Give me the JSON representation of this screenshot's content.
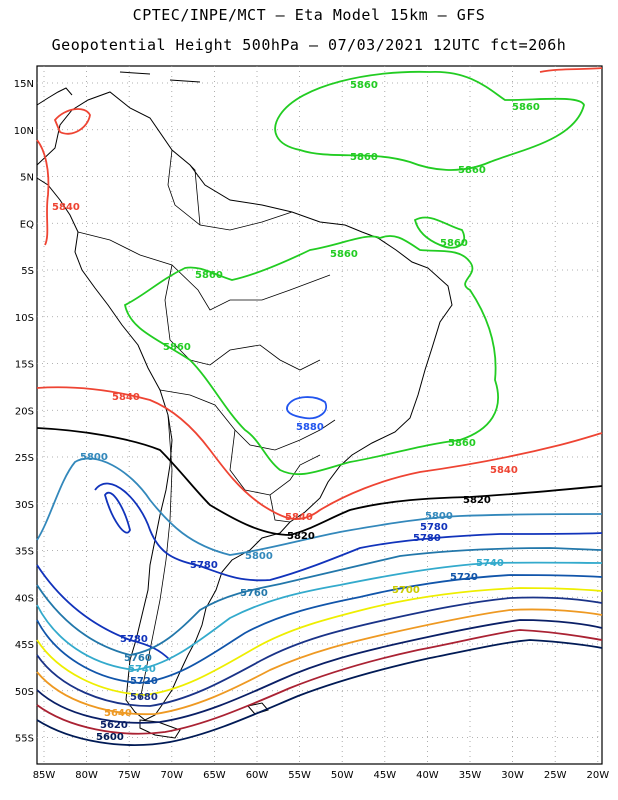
{
  "header": {
    "line1": "CPTEC/INPE/MCT –  Eta Model 15km – GFS",
    "line2": "Geopotential Height 500hPa – 07/03/2021 12UTC fct=206h"
  },
  "axes": {
    "lat_labels": [
      "15N",
      "10N",
      "5N",
      "EQ",
      "5S",
      "10S",
      "15S",
      "20S",
      "25S",
      "30S",
      "35S",
      "40S",
      "45S",
      "50S",
      "55S"
    ],
    "lon_labels": [
      "85W",
      "80W",
      "75W",
      "70W",
      "65W",
      "60W",
      "55W",
      "50W",
      "45W",
      "40W",
      "35W",
      "30W",
      "25W",
      "20W"
    ]
  },
  "colors": {
    "c5860": "#22cc22",
    "c5880": "#2255ee",
    "c5840": "#ee4433",
    "c5820": "#000000",
    "c5800": "#3388bb",
    "c5780": "#1133bb",
    "c5760": "#2277aa",
    "c5740": "#33aacc",
    "c5720": "#1155aa",
    "c5700": "#eeee00",
    "c5680": "#ee9922",
    "c5640": "#0a1f66",
    "c5600": "#001a55"
  },
  "contour_labels": [
    {
      "id": "l5860a",
      "text": "5860"
    },
    {
      "id": "l5860b",
      "text": "5860"
    },
    {
      "id": "l5860c",
      "text": "5860"
    },
    {
      "id": "l5860d",
      "text": "5860"
    },
    {
      "id": "l5860e",
      "text": "5860"
    },
    {
      "id": "l5860f",
      "text": "5860"
    },
    {
      "id": "l5860g",
      "text": "5860"
    },
    {
      "id": "l5860h",
      "text": "5860"
    },
    {
      "id": "l5860i",
      "text": "5860"
    },
    {
      "id": "l5880",
      "text": "5880"
    },
    {
      "id": "l5840a",
      "text": "5840"
    },
    {
      "id": "l5840b",
      "text": "5840"
    },
    {
      "id": "l5840c",
      "text": "5840"
    },
    {
      "id": "l5840d",
      "text": "5840"
    },
    {
      "id": "l5820a",
      "text": "5820"
    },
    {
      "id": "l5820b",
      "text": "5820"
    },
    {
      "id": "l5800a",
      "text": "5800"
    },
    {
      "id": "l5800b",
      "text": "5800"
    },
    {
      "id": "l5800c",
      "text": "5800"
    },
    {
      "id": "l5780a",
      "text": "5780"
    },
    {
      "id": "l5780b",
      "text": "5780"
    },
    {
      "id": "l5780c",
      "text": "5780"
    },
    {
      "id": "l5780d",
      "text": "5780"
    },
    {
      "id": "l5760a",
      "text": "5760"
    },
    {
      "id": "l5760b",
      "text": "5760"
    },
    {
      "id": "l5740a",
      "text": "5740"
    },
    {
      "id": "l5740b",
      "text": "5740"
    },
    {
      "id": "l5720a",
      "text": "5720"
    },
    {
      "id": "l5720b",
      "text": "5720"
    },
    {
      "id": "l5700",
      "text": "5700"
    },
    {
      "id": "l5680",
      "text": "5680"
    },
    {
      "id": "l5640",
      "text": "5640"
    },
    {
      "id": "l5620",
      "text": "5620"
    },
    {
      "id": "l5600",
      "text": "5600"
    }
  ]
}
